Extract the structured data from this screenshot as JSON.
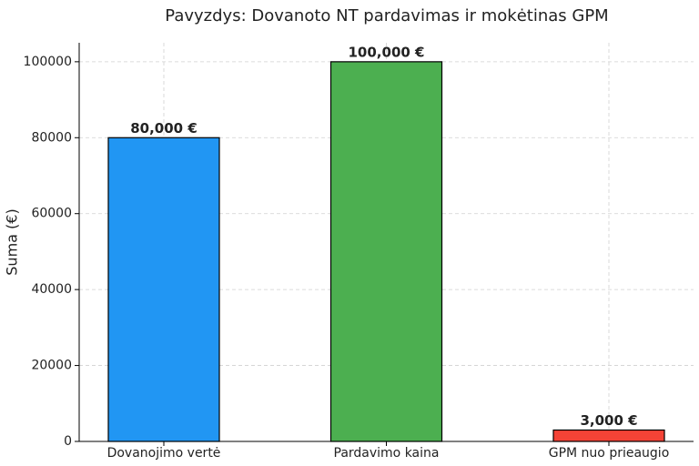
{
  "chart_data": {
    "type": "bar",
    "title": "Pavyzdys: Dovanoto NT pardavimas ir mokėtinas GPM",
    "y_label": "Suma (€)",
    "categories": [
      "Dovanojimo vertė",
      "Pardavimo kaina",
      "GPM nuo prieaugio"
    ],
    "values": [
      80000,
      100000,
      3000
    ],
    "value_labels": [
      "80,000 €",
      "100,000 €",
      "3,000 €"
    ],
    "colors": [
      "#2196f3",
      "#4caf50",
      "#f44336"
    ],
    "ylim": [
      0,
      105000
    ],
    "yticks": [
      0,
      20000,
      40000,
      60000,
      80000,
      100000
    ],
    "grid": true
  }
}
